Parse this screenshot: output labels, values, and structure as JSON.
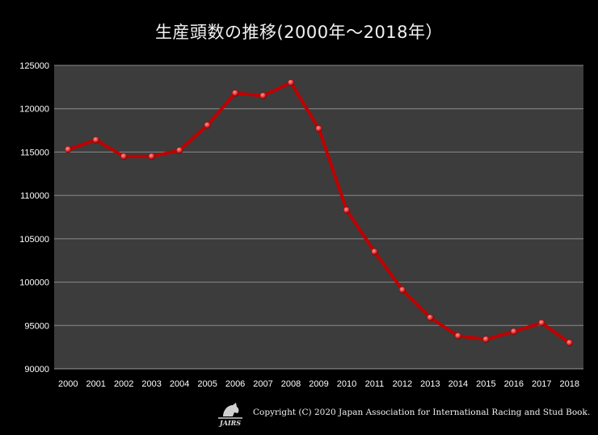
{
  "chart_data": {
    "type": "line",
    "title": "生産頭数の推移(2000年～2018年）",
    "xlabel": "",
    "ylabel": "",
    "categories": [
      "2000",
      "2001",
      "2002",
      "2003",
      "2004",
      "2005",
      "2006",
      "2007",
      "2008",
      "2009",
      "2010",
      "2011",
      "2012",
      "2013",
      "2014",
      "2015",
      "2016",
      "2017",
      "2018"
    ],
    "series": [
      {
        "values": [
          115300,
          116400,
          114500,
          114500,
          115200,
          118100,
          121800,
          121500,
          123000,
          117700,
          108300,
          103500,
          99100,
          95900,
          93800,
          93400,
          94300,
          95300,
          93000
        ]
      }
    ],
    "ylim": [
      90000,
      125000
    ],
    "yticks": [
      90000,
      95000,
      100000,
      105000,
      110000,
      115000,
      120000,
      125000
    ],
    "grid": true,
    "legend": "none",
    "colors": {
      "background": "#000000",
      "plot_area": "#3c3c3c",
      "gridline": "#8a8a8a",
      "line": "#c00000",
      "marker": "#e03030"
    }
  },
  "footer": {
    "logo_text": "JAIRS",
    "copyright": "Copyright (C) 2020 Japan Association for International Racing and Stud Book."
  }
}
